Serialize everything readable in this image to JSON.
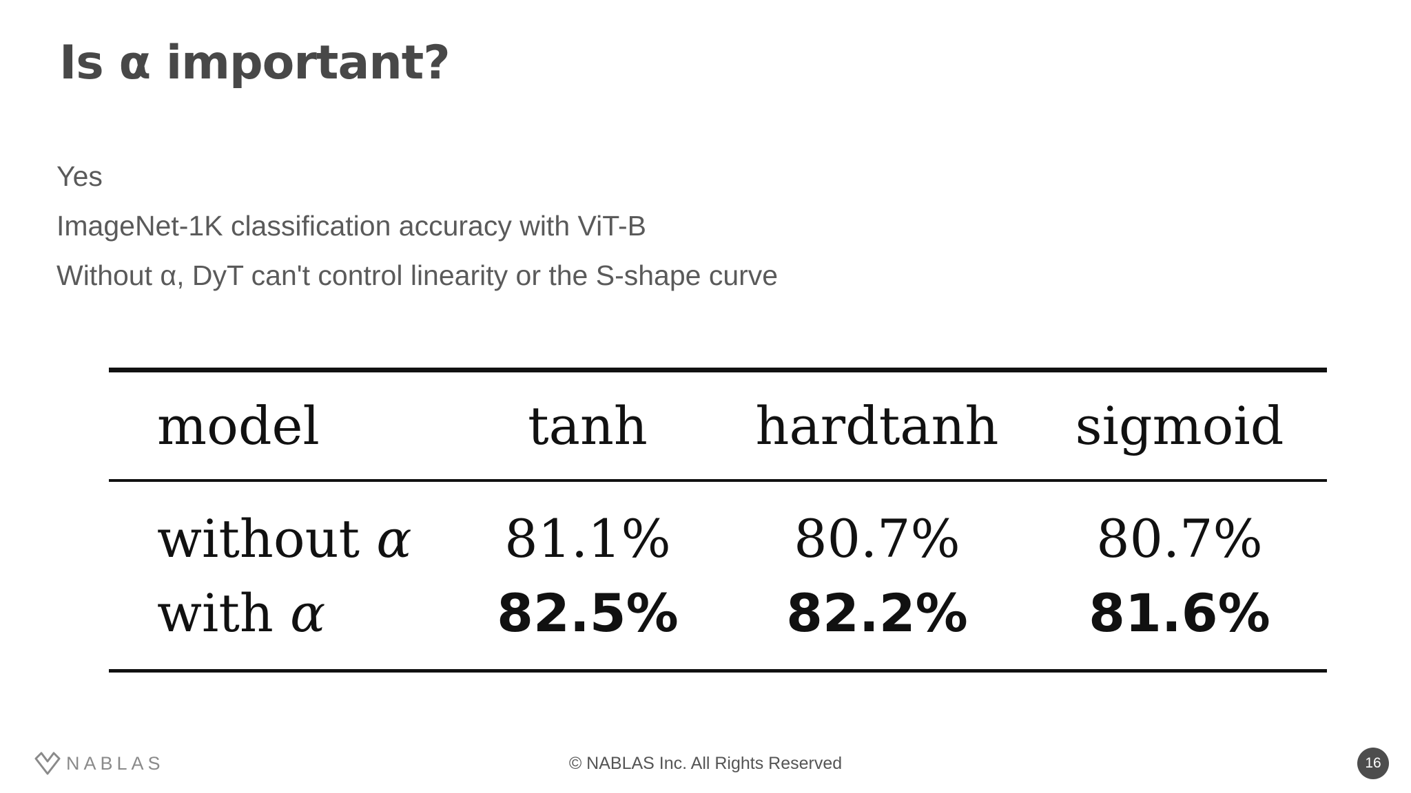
{
  "slide": {
    "title": "Is α important?",
    "bullets": [
      "Yes",
      "ImageNet-1K classification accuracy with ViT-B",
      "Without α, DyT can't control linearity or the S-shape curve"
    ]
  },
  "table": {
    "headers": [
      "model",
      "tanh",
      "hardtanh",
      "sigmoid"
    ],
    "rows": [
      {
        "label": "without",
        "symbol": "α",
        "values": [
          "81.1%",
          "80.7%",
          "80.7%"
        ]
      },
      {
        "label": "with",
        "symbol": "α",
        "values": [
          "82.5%",
          "82.2%",
          "81.6%"
        ]
      }
    ]
  },
  "footer": {
    "logo_text": "NABLAS",
    "copyright": "© NABLAS Inc. All Rights Reserved",
    "page_number": "16"
  },
  "colors": {
    "title": "#484848",
    "text": "#5a5a5a",
    "table_ink": "#111111",
    "page_badge": "#4d4d4d"
  }
}
